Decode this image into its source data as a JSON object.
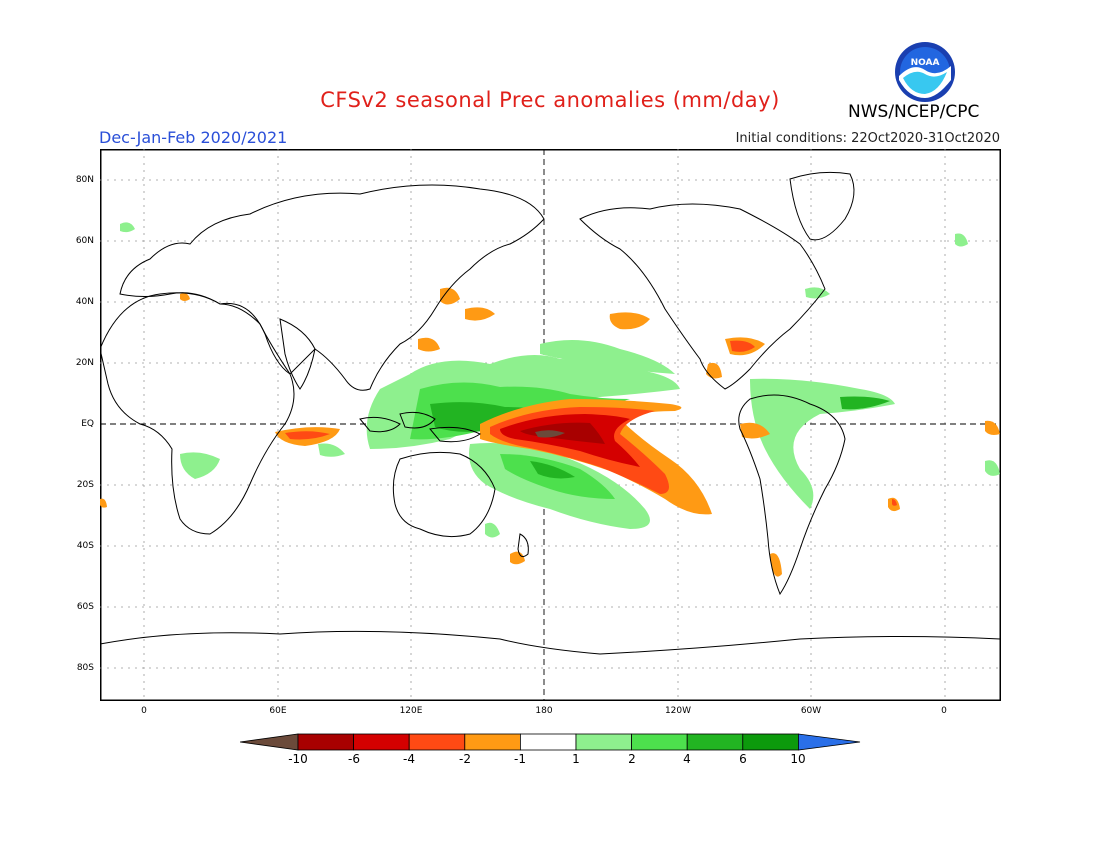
{
  "header": {
    "title": "CFSv2 seasonal Prec anomalies (mm/day)",
    "season": "Dec-Jan-Feb 2020/2021",
    "initial_conditions": "Initial conditions: 22Oct2020-31Oct2020",
    "agency": "NWS/NCEP/CPC",
    "logo_text": "NOAA"
  },
  "map": {
    "lat_labels": [
      "80N",
      "60N",
      "40N",
      "20N",
      "EQ",
      "20S",
      "40S",
      "60S",
      "80S"
    ],
    "lon_labels": [
      "0",
      "60E",
      "120E",
      "180",
      "120W",
      "60W",
      "0"
    ]
  },
  "colorbar": {
    "labels": [
      "-10",
      "-6",
      "-4",
      "-2",
      "-1",
      "1",
      "2",
      "4",
      "6",
      "10"
    ],
    "colors": [
      "#6b4a3a",
      "#a80000",
      "#d40000",
      "#ff4a14",
      "#ff9a14",
      "#ffffff",
      "#8ef08e",
      "#4de04d",
      "#22b422",
      "#0c9a0c",
      "#2a6fe8"
    ]
  }
}
